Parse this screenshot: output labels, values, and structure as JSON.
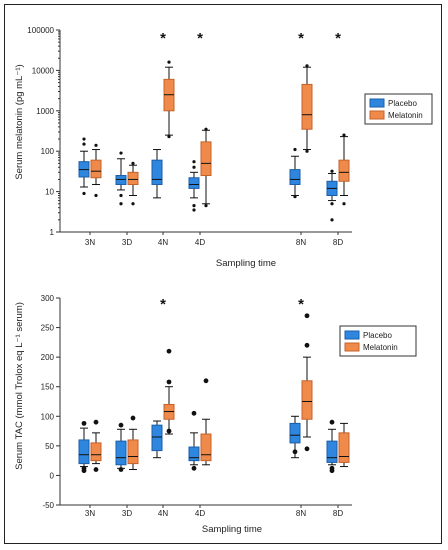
{
  "colors": {
    "placebo": "#2e86de",
    "melatonin": "#f08a4b",
    "placebo_stroke": "#1a5ea8",
    "melatonin_stroke": "#c4622a"
  },
  "chart_data": [
    {
      "type": "boxplot",
      "ylabel": "Serum melatonin (pg mL⁻¹)",
      "xlabel": "Sampling time",
      "yscale": "log",
      "ylim": [
        1,
        100000
      ],
      "yticks": [
        1,
        10,
        100,
        1000,
        10000,
        100000
      ],
      "ytick_labels": [
        "1",
        "10",
        "100",
        "1000",
        "10000",
        "100000"
      ],
      "categories": [
        "3N",
        "3D",
        "4N",
        "4D",
        "8N",
        "8D"
      ],
      "legend": {
        "position": "top-right",
        "entries": [
          "Placebo",
          "Melatonin"
        ]
      },
      "significance": [
        "",
        "",
        "*",
        "*",
        "*",
        "*"
      ],
      "series": [
        {
          "name": "Placebo",
          "boxes": [
            {
              "whisker_low": 13,
              "q1": 23,
              "median": 35,
              "q3": 55,
              "whisker_high": 100,
              "outliers": [
                9,
                150,
                200
              ]
            },
            {
              "whisker_low": 11,
              "q1": 15,
              "median": 20,
              "q3": 25,
              "whisker_high": 65,
              "outliers": [
                5,
                8,
                90
              ]
            },
            {
              "whisker_low": 7,
              "q1": 15,
              "median": 20,
              "q3": 60,
              "whisker_high": 110,
              "outliers": []
            },
            {
              "whisker_low": 7,
              "q1": 12,
              "median": 15,
              "q3": 22,
              "whisker_high": 30,
              "outliers": [
                3.5,
                4.5,
                40,
                55
              ]
            },
            {
              "whisker_low": 8,
              "q1": 15,
              "median": 20,
              "q3": 35,
              "whisker_high": 75,
              "outliers": [
                7.5,
                110
              ]
            },
            {
              "whisker_low": 6,
              "q1": 8,
              "median": 12,
              "q3": 18,
              "whisker_high": 28,
              "outliers": [
                2,
                5,
                32
              ]
            }
          ]
        },
        {
          "name": "Melatonin",
          "boxes": [
            {
              "whisker_low": 15,
              "q1": 22,
              "median": 32,
              "q3": 60,
              "whisker_high": 110,
              "outliers": [
                8,
                140
              ]
            },
            {
              "whisker_low": 8,
              "q1": 15,
              "median": 20,
              "q3": 30,
              "whisker_high": 45,
              "outliers": [
                5,
                50
              ]
            },
            {
              "whisker_low": 250,
              "q1": 1000,
              "median": 2500,
              "q3": 6000,
              "whisker_high": 12000,
              "outliers": [
                230,
                16000
              ]
            },
            {
              "whisker_low": 5,
              "q1": 25,
              "median": 50,
              "q3": 170,
              "whisker_high": 330,
              "outliers": [
                4.5,
                350
              ]
            },
            {
              "whisker_low": 110,
              "q1": 350,
              "median": 800,
              "q3": 4500,
              "whisker_high": 12000,
              "outliers": [
                100,
                13000
              ]
            },
            {
              "whisker_low": 8,
              "q1": 18,
              "median": 30,
              "q3": 60,
              "whisker_high": 230,
              "outliers": [
                5,
                250
              ]
            }
          ]
        }
      ]
    },
    {
      "type": "boxplot",
      "ylabel": "Serum TAC (mmol Trolox eq L⁻¹ serum)",
      "xlabel": "Sampling time",
      "yscale": "linear",
      "ylim": [
        -50,
        300
      ],
      "yticks": [
        -50,
        0,
        50,
        100,
        150,
        200,
        250,
        300
      ],
      "ytick_labels": [
        "-50",
        "0",
        "50",
        "100",
        "150",
        "200",
        "250",
        "300"
      ],
      "categories": [
        "3N",
        "3D",
        "4N",
        "4D",
        "8N",
        "8D"
      ],
      "legend": {
        "position": "top-right",
        "entries": [
          "Placebo",
          "Melatonin"
        ]
      },
      "significance": [
        "",
        "",
        "*",
        "",
        "*",
        ""
      ],
      "series": [
        {
          "name": "Placebo",
          "boxes": [
            {
              "whisker_low": 15,
              "q1": 20,
              "median": 35,
              "q3": 60,
              "whisker_high": 80,
              "outliers": [
                8,
                12,
                88
              ]
            },
            {
              "whisker_low": 12,
              "q1": 18,
              "median": 30,
              "q3": 58,
              "whisker_high": 78,
              "outliers": [
                10,
                85
              ]
            },
            {
              "whisker_low": 30,
              "q1": 42,
              "median": 65,
              "q3": 85,
              "whisker_high": 92,
              "outliers": []
            },
            {
              "whisker_low": 18,
              "q1": 25,
              "median": 30,
              "q3": 48,
              "whisker_high": 72,
              "outliers": [
                12,
                105
              ]
            },
            {
              "whisker_low": 30,
              "q1": 55,
              "median": 68,
              "q3": 88,
              "whisker_high": 100,
              "outliers": [
                40
              ]
            },
            {
              "whisker_low": 18,
              "q1": 22,
              "median": 30,
              "q3": 58,
              "whisker_high": 78,
              "outliers": [
                8,
                12,
                90
              ]
            }
          ]
        },
        {
          "name": "Melatonin",
          "boxes": [
            {
              "whisker_low": 20,
              "q1": 25,
              "median": 35,
              "q3": 55,
              "whisker_high": 72,
              "outliers": [
                10,
                90
              ]
            },
            {
              "whisker_low": 10,
              "q1": 20,
              "median": 32,
              "q3": 60,
              "whisker_high": 78,
              "outliers": [
                97
              ]
            },
            {
              "whisker_low": 70,
              "q1": 95,
              "median": 108,
              "q3": 120,
              "whisker_high": 150,
              "outliers": [
                75,
                158,
                210
              ]
            },
            {
              "whisker_low": 18,
              "q1": 25,
              "median": 35,
              "q3": 70,
              "whisker_high": 95,
              "outliers": [
                160
              ]
            },
            {
              "whisker_low": 65,
              "q1": 95,
              "median": 125,
              "q3": 160,
              "whisker_high": 200,
              "outliers": [
                45,
                220,
                270
              ]
            },
            {
              "whisker_low": 15,
              "q1": 22,
              "median": 32,
              "q3": 72,
              "whisker_high": 88,
              "outliers": []
            }
          ]
        }
      ]
    }
  ]
}
